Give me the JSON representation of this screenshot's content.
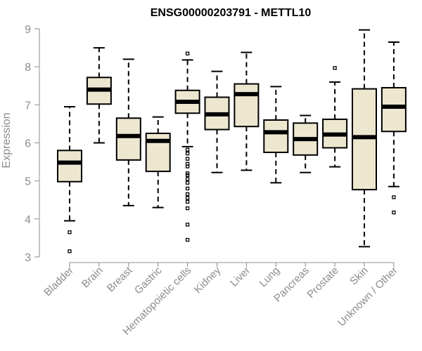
{
  "chart_data": {
    "type": "boxplot",
    "title": "ENSG00000203791 - METTL10",
    "xlabel": "",
    "ylabel": "Expression",
    "ylim": [
      3,
      9
    ],
    "yticks": [
      "3",
      "4",
      "5",
      "6",
      "7",
      "8",
      "9"
    ],
    "box_fill": "#ede7d0",
    "box_stroke": "#000000",
    "label_color": "#8c8c8c",
    "categories": [
      "Bladder",
      "Brain",
      "Breast",
      "Gastric",
      "Hematopoietic cells",
      "Kidney",
      "Liver",
      "Lung",
      "Pancreas",
      "Prostate",
      "Skin",
      "Unknown / Other"
    ],
    "boxes": [
      {
        "name": "Bladder",
        "whisker_low": 3.95,
        "q1": 4.98,
        "median": 5.48,
        "q3": 5.8,
        "whisker_high": 6.95,
        "outliers": [
          3.65,
          3.15
        ]
      },
      {
        "name": "Brain",
        "whisker_low": 6.0,
        "q1": 7.02,
        "median": 7.4,
        "q3": 7.72,
        "whisker_high": 8.5,
        "outliers": []
      },
      {
        "name": "Breast",
        "whisker_low": 4.35,
        "q1": 5.55,
        "median": 6.18,
        "q3": 6.65,
        "whisker_high": 8.2,
        "outliers": []
      },
      {
        "name": "Gastric",
        "whisker_low": 4.3,
        "q1": 5.25,
        "median": 6.05,
        "q3": 6.25,
        "whisker_high": 6.68,
        "outliers": []
      },
      {
        "name": "Hematopoietic cells",
        "whisker_low": 5.9,
        "q1": 6.78,
        "median": 7.08,
        "q3": 7.38,
        "whisker_high": 8.18,
        "outliers": [
          8.35,
          5.82,
          5.72,
          5.58,
          5.45,
          5.38,
          5.2,
          5.15,
          5.05,
          4.95,
          4.8,
          4.65,
          4.55,
          4.45,
          4.28,
          3.85,
          3.45
        ]
      },
      {
        "name": "Kidney",
        "whisker_low": 5.22,
        "q1": 6.35,
        "median": 6.75,
        "q3": 7.2,
        "whisker_high": 7.88,
        "outliers": []
      },
      {
        "name": "Liver",
        "whisker_low": 5.28,
        "q1": 6.43,
        "median": 7.28,
        "q3": 7.55,
        "whisker_high": 8.38,
        "outliers": []
      },
      {
        "name": "Lung",
        "whisker_low": 4.95,
        "q1": 5.75,
        "median": 6.28,
        "q3": 6.6,
        "whisker_high": 7.48,
        "outliers": []
      },
      {
        "name": "Pancreas",
        "whisker_low": 5.22,
        "q1": 5.68,
        "median": 6.1,
        "q3": 6.52,
        "whisker_high": 6.72,
        "outliers": []
      },
      {
        "name": "Prostate",
        "whisker_low": 5.37,
        "q1": 5.87,
        "median": 6.22,
        "q3": 6.62,
        "whisker_high": 7.6,
        "outliers": [
          7.97
        ]
      },
      {
        "name": "Skin",
        "whisker_low": 3.27,
        "q1": 4.77,
        "median": 6.15,
        "q3": 7.42,
        "whisker_high": 8.97,
        "outliers": []
      },
      {
        "name": "Unknown / Other",
        "whisker_low": 4.85,
        "q1": 6.3,
        "median": 6.95,
        "q3": 7.45,
        "whisker_high": 8.65,
        "outliers": [
          4.57,
          4.17
        ]
      }
    ]
  }
}
